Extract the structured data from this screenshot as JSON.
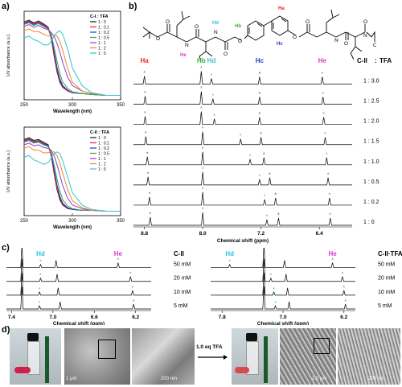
{
  "panels": {
    "a": "a)",
    "b": "b)",
    "c": "c)",
    "d": "d)"
  },
  "colors": {
    "ha": "#e8202a",
    "hb": "#2fb52f",
    "hc": "#2b35c8",
    "hd": "#2ec4d6",
    "he": "#d93cc8",
    "series": [
      "#1d1d1d",
      "#e8202a",
      "#2b35c8",
      "#2fa85a",
      "#9b3ac8",
      "#e88a2a",
      "#2ec4d6"
    ]
  },
  "chart_data": [
    {
      "id": "uv-c4",
      "type": "line",
      "legend_title": "C-I : TFA",
      "legend_position": "top-right",
      "xlabel": "Wavelength (nm)",
      "ylabel": "UV absorbance (a.u.)",
      "xlim": [
        250,
        350
      ],
      "xticks": [
        250,
        300,
        350
      ],
      "series": [
        {
          "name": "1 : 0",
          "x": [
            250,
            255,
            260,
            265,
            270,
            275,
            278,
            281,
            284,
            287,
            290,
            295,
            300,
            310,
            320,
            335,
            350
          ],
          "y": [
            0.88,
            0.9,
            0.87,
            0.89,
            0.86,
            0.82,
            0.7,
            0.5,
            0.32,
            0.2,
            0.14,
            0.1,
            0.08,
            0.07,
            0.06,
            0.05,
            0.05
          ]
        },
        {
          "name": "1 : 0.1",
          "x": [
            250,
            255,
            260,
            265,
            270,
            275,
            278,
            281,
            284,
            287,
            290,
            295,
            300,
            310,
            320,
            335,
            350
          ],
          "y": [
            0.87,
            0.89,
            0.86,
            0.88,
            0.85,
            0.81,
            0.7,
            0.52,
            0.34,
            0.22,
            0.15,
            0.1,
            0.08,
            0.07,
            0.06,
            0.05,
            0.05
          ]
        },
        {
          "name": "1 : 0.2",
          "x": [
            250,
            255,
            260,
            265,
            270,
            275,
            278,
            281,
            284,
            287,
            290,
            295,
            300,
            310,
            320,
            335,
            350
          ],
          "y": [
            0.86,
            0.88,
            0.85,
            0.87,
            0.84,
            0.8,
            0.72,
            0.55,
            0.37,
            0.24,
            0.16,
            0.11,
            0.08,
            0.07,
            0.06,
            0.05,
            0.05
          ]
        },
        {
          "name": "1 : 0.5",
          "x": [
            250,
            255,
            260,
            265,
            270,
            275,
            278,
            281,
            284,
            287,
            290,
            295,
            300,
            310,
            320,
            335,
            350
          ],
          "y": [
            0.85,
            0.87,
            0.84,
            0.86,
            0.83,
            0.8,
            0.74,
            0.6,
            0.44,
            0.3,
            0.2,
            0.13,
            0.09,
            0.07,
            0.06,
            0.05,
            0.05
          ]
        },
        {
          "name": "1 : 1",
          "x": [
            250,
            255,
            260,
            265,
            270,
            275,
            278,
            281,
            284,
            287,
            290,
            295,
            300,
            310,
            320,
            335,
            350
          ],
          "y": [
            0.83,
            0.85,
            0.82,
            0.84,
            0.81,
            0.79,
            0.76,
            0.72,
            0.64,
            0.54,
            0.42,
            0.26,
            0.16,
            0.1,
            0.07,
            0.05,
            0.05
          ]
        },
        {
          "name": "1 : 2",
          "x": [
            250,
            255,
            260,
            265,
            270,
            275,
            278,
            281,
            284,
            287,
            290,
            295,
            300,
            310,
            320,
            335,
            350
          ],
          "y": [
            0.78,
            0.8,
            0.77,
            0.77,
            0.74,
            0.72,
            0.72,
            0.73,
            0.72,
            0.66,
            0.56,
            0.36,
            0.2,
            0.1,
            0.07,
            0.05,
            0.05
          ]
        },
        {
          "name": "1 : 5",
          "x": [
            250,
            255,
            260,
            265,
            270,
            275,
            278,
            281,
            284,
            287,
            290,
            295,
            300,
            310,
            320,
            335,
            350
          ],
          "y": [
            0.7,
            0.72,
            0.68,
            0.66,
            0.62,
            0.62,
            0.66,
            0.72,
            0.76,
            0.78,
            0.74,
            0.58,
            0.36,
            0.16,
            0.08,
            0.05,
            0.05
          ]
        }
      ]
    },
    {
      "id": "uv-cii",
      "type": "line",
      "legend_title": "C-II : TFA",
      "legend_position": "top-right",
      "xlabel": "Wavelength (nm)",
      "ylabel": "UV absorbance (a.u.)",
      "xlim": [
        250,
        350
      ],
      "xticks": [
        250,
        300,
        350
      ],
      "series": [
        {
          "name": "1 : 0",
          "x": [
            250,
            255,
            260,
            265,
            270,
            275,
            278,
            281,
            284,
            287,
            290,
            295,
            300,
            310,
            320,
            335,
            350
          ],
          "y": [
            0.86,
            0.88,
            0.85,
            0.86,
            0.83,
            0.8,
            0.68,
            0.48,
            0.3,
            0.18,
            0.12,
            0.08,
            0.07,
            0.06,
            0.06,
            0.05,
            0.05
          ]
        },
        {
          "name": "1 : 0.1",
          "x": [
            250,
            255,
            260,
            265,
            270,
            275,
            278,
            281,
            284,
            287,
            290,
            295,
            300,
            310,
            320,
            335,
            350
          ],
          "y": [
            0.85,
            0.87,
            0.84,
            0.85,
            0.82,
            0.79,
            0.68,
            0.5,
            0.32,
            0.2,
            0.13,
            0.09,
            0.07,
            0.06,
            0.06,
            0.05,
            0.05
          ]
        },
        {
          "name": "1 : 0.2",
          "x": [
            250,
            255,
            260,
            265,
            270,
            275,
            278,
            281,
            284,
            287,
            290,
            295,
            300,
            310,
            320,
            335,
            350
          ],
          "y": [
            0.84,
            0.86,
            0.83,
            0.84,
            0.81,
            0.79,
            0.7,
            0.53,
            0.35,
            0.22,
            0.14,
            0.09,
            0.07,
            0.06,
            0.06,
            0.05,
            0.05
          ]
        },
        {
          "name": "1 : 0.5",
          "x": [
            250,
            255,
            260,
            265,
            270,
            275,
            278,
            281,
            284,
            287,
            290,
            295,
            300,
            310,
            320,
            335,
            350
          ],
          "y": [
            0.83,
            0.85,
            0.82,
            0.83,
            0.8,
            0.78,
            0.72,
            0.58,
            0.42,
            0.28,
            0.18,
            0.11,
            0.08,
            0.06,
            0.06,
            0.05,
            0.05
          ]
        },
        {
          "name": "1 : 1",
          "x": [
            250,
            255,
            260,
            265,
            270,
            275,
            278,
            281,
            284,
            287,
            290,
            295,
            300,
            310,
            320,
            335,
            350
          ],
          "y": [
            0.8,
            0.82,
            0.79,
            0.8,
            0.77,
            0.76,
            0.74,
            0.68,
            0.58,
            0.46,
            0.34,
            0.2,
            0.12,
            0.08,
            0.06,
            0.05,
            0.05
          ]
        },
        {
          "name": "1 : 2",
          "x": [
            250,
            255,
            260,
            265,
            270,
            275,
            278,
            281,
            284,
            287,
            290,
            295,
            300,
            310,
            320,
            335,
            350
          ],
          "y": [
            0.76,
            0.78,
            0.74,
            0.74,
            0.71,
            0.71,
            0.72,
            0.72,
            0.68,
            0.6,
            0.48,
            0.3,
            0.17,
            0.09,
            0.06,
            0.05,
            0.05
          ]
        },
        {
          "name": "1 : 5",
          "x": [
            250,
            255,
            260,
            265,
            270,
            275,
            278,
            281,
            284,
            287,
            290,
            295,
            300,
            310,
            320,
            335,
            350
          ],
          "y": [
            0.66,
            0.68,
            0.63,
            0.61,
            0.58,
            0.6,
            0.65,
            0.7,
            0.72,
            0.7,
            0.62,
            0.44,
            0.26,
            0.12,
            0.07,
            0.05,
            0.05
          ]
        }
      ]
    },
    {
      "id": "nmr-titration",
      "type": "line",
      "title_left": "C-II",
      "title_right": "TFA",
      "xlabel": "Chemical shift (ppm)",
      "xlim": [
        8.95,
        5.95
      ],
      "xticks": [
        8.8,
        8.0,
        7.2,
        6.4
      ],
      "peak_labels": [
        "Ha",
        "Hb",
        "Hd",
        "Hc",
        "He"
      ],
      "traces": [
        {
          "label": "1 : 0",
          "peaks": {
            "ha": 8.72,
            "hb": 8.0,
            "hd": 7.12,
            "hc": 6.96,
            "he": 6.25
          }
        },
        {
          "label": "1 : 0.2",
          "peaks": {
            "ha": 8.73,
            "hb": 8.0,
            "hd": 7.15,
            "hc": 7.0,
            "he": 6.26
          }
        },
        {
          "label": "1 : 0.5",
          "peaks": {
            "ha": 8.75,
            "hb": 8.0,
            "hd": 7.22,
            "hc": 7.08,
            "he": 6.28
          }
        },
        {
          "label": "1 : 1.0",
          "peaks": {
            "ha": 8.76,
            "hb": 8.0,
            "hd": 7.35,
            "hc": 7.16,
            "he": 6.3
          }
        },
        {
          "label": "1 : 1.5",
          "peaks": {
            "ha": 8.78,
            "hb": 8.0,
            "hd": 7.48,
            "hc": 7.2,
            "he": 6.32
          }
        },
        {
          "label": "1 : 2.0",
          "peaks": {
            "ha": 8.79,
            "hb": 8.02,
            "hd": 7.84,
            "hc": 7.22,
            "he": 6.34
          }
        },
        {
          "label": "1 : 2.5",
          "peaks": {
            "ha": 8.79,
            "hb": 8.02,
            "hd": 7.86,
            "hc": 7.22,
            "he": 6.35
          }
        },
        {
          "label": "1 : 3.0",
          "peaks": {
            "ha": 8.8,
            "hb": 8.02,
            "hd": 7.88,
            "hc": 7.22,
            "he": 6.36
          }
        }
      ]
    },
    {
      "id": "nmr-conc-cii",
      "type": "line",
      "title": "C-II",
      "xlabel": "Chemical shift (ppm)",
      "xlim": [
        7.45,
        6.05
      ],
      "xticks": [
        7.4,
        7.0,
        6.6,
        6.2
      ],
      "peak_labels": [
        "Hd",
        "He"
      ],
      "traces": [
        {
          "label": "5 mM",
          "hd": 7.13,
          "he": 6.22,
          "extra": [
            7.3,
            6.93
          ]
        },
        {
          "label": "10 mM",
          "hd": 7.13,
          "he": 6.23,
          "extra": [
            7.3,
            6.95
          ]
        },
        {
          "label": "20 mM",
          "hd": 7.12,
          "he": 6.25,
          "extra": [
            7.3,
            6.96
          ]
        },
        {
          "label": "50 mM",
          "hd": 7.12,
          "he": 6.37,
          "extra": [
            7.3,
            6.97
          ]
        }
      ]
    },
    {
      "id": "nmr-conc-cii-tfa",
      "type": "line",
      "title": "C-II·TFA",
      "xlabel": "Chemical shift (ppm)",
      "xlim": [
        7.95,
        6.05
      ],
      "xticks": [
        7.8,
        7.0,
        6.2
      ],
      "peak_labels": [
        "Hd",
        "He"
      ],
      "traces": [
        {
          "label": "5 mM",
          "hd": 7.1,
          "he": 6.18,
          "extra": [
            7.25,
            6.92
          ]
        },
        {
          "label": "10 mM",
          "hd": 7.12,
          "he": 6.2,
          "extra": [
            7.25,
            6.94
          ]
        },
        {
          "label": "20 mM",
          "hd": 7.16,
          "he": 6.22,
          "extra": [
            7.25,
            6.96
          ]
        },
        {
          "label": "50 mM",
          "hd": 7.7,
          "he": 6.35,
          "extra": [
            7.25,
            6.98
          ]
        }
      ]
    }
  ],
  "molecule": {
    "labels": [
      "Ha",
      "Hb",
      "Hc",
      "Hd",
      "He"
    ],
    "atoms": [
      "O",
      "O",
      "O",
      "O",
      "N",
      "N",
      "N",
      "N",
      "O",
      "O",
      "O",
      "O",
      "O",
      "O"
    ]
  },
  "panel_d": {
    "arrow_label": "1.0 eq TFA",
    "scale_bars": [
      "1 μm",
      "200 nm",
      "1.0 μm",
      "200 nm"
    ]
  }
}
